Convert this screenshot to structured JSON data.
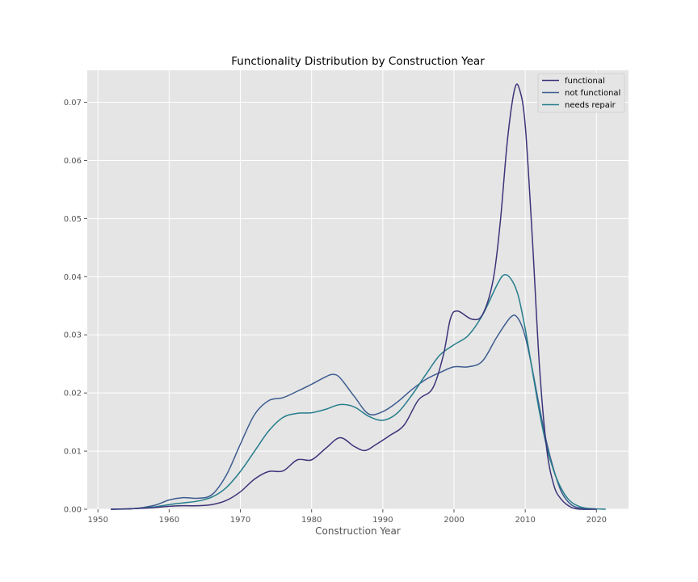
{
  "chart_data": {
    "type": "line",
    "title": "Functionality Distribution by Construction Year",
    "xlabel": "Construction Year",
    "ylabel": "",
    "xlim": [
      1948.5,
      2024.5
    ],
    "ylim": [
      0,
      0.0755
    ],
    "xticks": [
      1950,
      1960,
      1970,
      1980,
      1990,
      2000,
      2010,
      2020
    ],
    "yticks": [
      0.0,
      0.01,
      0.02,
      0.03,
      0.04,
      0.05,
      0.06,
      0.07
    ],
    "ytick_labels": [
      "0.00",
      "0.01",
      "0.02",
      "0.03",
      "0.04",
      "0.05",
      "0.06",
      "0.07"
    ],
    "grid": true,
    "legend_position": "top-right",
    "background": "#e5e5e5",
    "series": [
      {
        "name": "functional",
        "color": "#3b3479",
        "points": [
          [
            1951.8,
            0.0
          ],
          [
            1955,
            0.0001
          ],
          [
            1958,
            0.0003
          ],
          [
            1960,
            0.0005
          ],
          [
            1962,
            0.0006
          ],
          [
            1964,
            0.0006
          ],
          [
            1966,
            0.0008
          ],
          [
            1968,
            0.0015
          ],
          [
            1970,
            0.003
          ],
          [
            1972,
            0.0052
          ],
          [
            1974,
            0.0065
          ],
          [
            1976,
            0.0066
          ],
          [
            1978,
            0.0085
          ],
          [
            1980,
            0.0085
          ],
          [
            1982,
            0.0105
          ],
          [
            1984,
            0.0123
          ],
          [
            1986,
            0.0108
          ],
          [
            1987.5,
            0.0101
          ],
          [
            1989,
            0.0111
          ],
          [
            1991,
            0.0127
          ],
          [
            1993,
            0.0145
          ],
          [
            1995,
            0.0188
          ],
          [
            1997,
            0.0208
          ],
          [
            1998.5,
            0.0265
          ],
          [
            1999.5,
            0.0328
          ],
          [
            2000.5,
            0.0341
          ],
          [
            2002.5,
            0.0327
          ],
          [
            2004,
            0.0335
          ],
          [
            2005.5,
            0.0395
          ],
          [
            2006.5,
            0.0495
          ],
          [
            2007.5,
            0.0635
          ],
          [
            2008.5,
            0.0722
          ],
          [
            2009.2,
            0.0722
          ],
          [
            2010,
            0.066
          ],
          [
            2011,
            0.0465
          ],
          [
            2012,
            0.0245
          ],
          [
            2013,
            0.0105
          ],
          [
            2014,
            0.0042
          ],
          [
            2015,
            0.0018
          ],
          [
            2016.5,
            0.0003
          ],
          [
            2018,
            0.0
          ],
          [
            2020,
            0.0
          ]
        ]
      },
      {
        "name": "not functional",
        "color": "#3d5c8f",
        "points": [
          [
            1951.8,
            0.0
          ],
          [
            1955,
            0.0001
          ],
          [
            1958,
            0.0007
          ],
          [
            1960,
            0.0016
          ],
          [
            1962,
            0.002
          ],
          [
            1964,
            0.0019
          ],
          [
            1966,
            0.0025
          ],
          [
            1968,
            0.0058
          ],
          [
            1970,
            0.0112
          ],
          [
            1972,
            0.0163
          ],
          [
            1974,
            0.0187
          ],
          [
            1976,
            0.0192
          ],
          [
            1978,
            0.0203
          ],
          [
            1980,
            0.0215
          ],
          [
            1982,
            0.0228
          ],
          [
            1983,
            0.0232
          ],
          [
            1984,
            0.0226
          ],
          [
            1986,
            0.0194
          ],
          [
            1988,
            0.0164
          ],
          [
            1990,
            0.0168
          ],
          [
            1992,
            0.0184
          ],
          [
            1994,
            0.0205
          ],
          [
            1996,
            0.0223
          ],
          [
            1998,
            0.0235
          ],
          [
            2000,
            0.0245
          ],
          [
            2002,
            0.0245
          ],
          [
            2004,
            0.0255
          ],
          [
            2006,
            0.0296
          ],
          [
            2008,
            0.0331
          ],
          [
            2009,
            0.0328
          ],
          [
            2010,
            0.0297
          ],
          [
            2011,
            0.024
          ],
          [
            2012,
            0.0175
          ],
          [
            2013,
            0.0115
          ],
          [
            2014,
            0.0068
          ],
          [
            2015,
            0.0032
          ],
          [
            2016,
            0.0013
          ],
          [
            2017,
            0.0004
          ],
          [
            2018.5,
            0.0001
          ],
          [
            2020,
            0.0
          ]
        ]
      },
      {
        "name": "needs repair",
        "color": "#257d8b",
        "points": [
          [
            1951.8,
            0.0
          ],
          [
            1955,
            0.0001
          ],
          [
            1958,
            0.0004
          ],
          [
            1960,
            0.0008
          ],
          [
            1962,
            0.0011
          ],
          [
            1964,
            0.0014
          ],
          [
            1966,
            0.0021
          ],
          [
            1968,
            0.0037
          ],
          [
            1970,
            0.0065
          ],
          [
            1972,
            0.01
          ],
          [
            1974,
            0.0135
          ],
          [
            1976,
            0.0158
          ],
          [
            1978,
            0.0165
          ],
          [
            1980,
            0.0166
          ],
          [
            1982,
            0.0172
          ],
          [
            1984,
            0.018
          ],
          [
            1986,
            0.0176
          ],
          [
            1988,
            0.016
          ],
          [
            1990,
            0.0153
          ],
          [
            1992,
            0.0165
          ],
          [
            1994,
            0.0195
          ],
          [
            1996,
            0.0231
          ],
          [
            1998,
            0.0265
          ],
          [
            2000,
            0.0283
          ],
          [
            2002,
            0.0299
          ],
          [
            2004,
            0.0334
          ],
          [
            2006,
            0.0385
          ],
          [
            2007,
            0.0403
          ],
          [
            2008,
            0.0396
          ],
          [
            2009,
            0.0368
          ],
          [
            2010,
            0.031
          ],
          [
            2011,
            0.0238
          ],
          [
            2012,
            0.0167
          ],
          [
            2013,
            0.0108
          ],
          [
            2014,
            0.0066
          ],
          [
            2015,
            0.0037
          ],
          [
            2016,
            0.0018
          ],
          [
            2017,
            0.0008
          ],
          [
            2018.5,
            0.0002
          ],
          [
            2021.3,
            0.0
          ]
        ]
      }
    ]
  }
}
